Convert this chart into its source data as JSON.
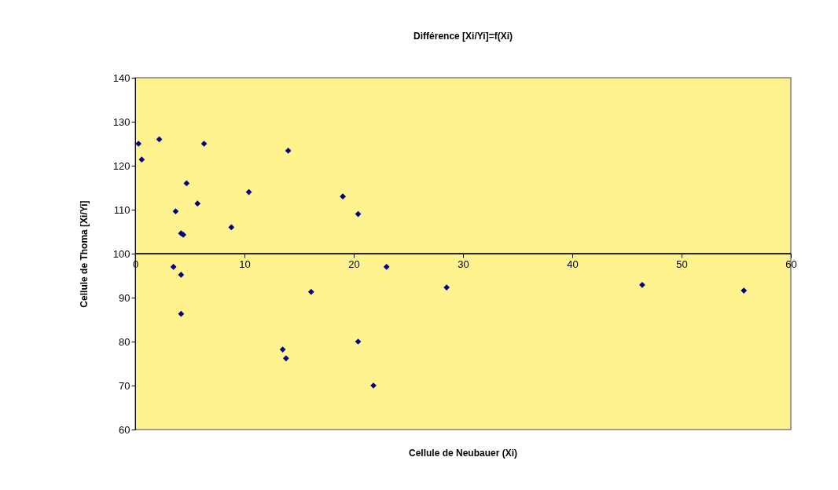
{
  "chart_data": {
    "type": "scatter",
    "title": "Différence [Xi/Yi]=f(Xi)",
    "xlabel": "Cellule de Neubauer (Xi)",
    "ylabel": "Cellule de Thoma [Xi/Yi]",
    "x": [
      0.3,
      0.6,
      2.2,
      6.3,
      4.7,
      3.7,
      5.7,
      4.2,
      4.4,
      8.8,
      10.4,
      14.0,
      19.0,
      20.4,
      3.5,
      4.2,
      4.2,
      16.1,
      13.5,
      13.8,
      20.4,
      21.8,
      23.0,
      28.5,
      46.4,
      55.7
    ],
    "series": [
      {
        "color": "#000080",
        "values": [
          125,
          121.4,
          126,
          125,
          116,
          109.6,
          111.4,
          104.6,
          104.3,
          106,
          114,
          123.4,
          113,
          109,
          97,
          95.2,
          86.3,
          91.3,
          78.2,
          76.2,
          80,
          70,
          97,
          92.3,
          92.9,
          91.6
        ]
      }
    ],
    "xlim": [
      0,
      60
    ],
    "xticks": [
      0,
      10,
      20,
      30,
      40,
      50,
      60
    ],
    "ylim": [
      60,
      140
    ],
    "yticks": [
      60,
      70,
      80,
      90,
      100,
      110,
      120,
      130,
      140
    ],
    "ref_lines": [
      {
        "axis": "y",
        "value": 100
      }
    ],
    "marker": "diamond",
    "grid": false
  }
}
